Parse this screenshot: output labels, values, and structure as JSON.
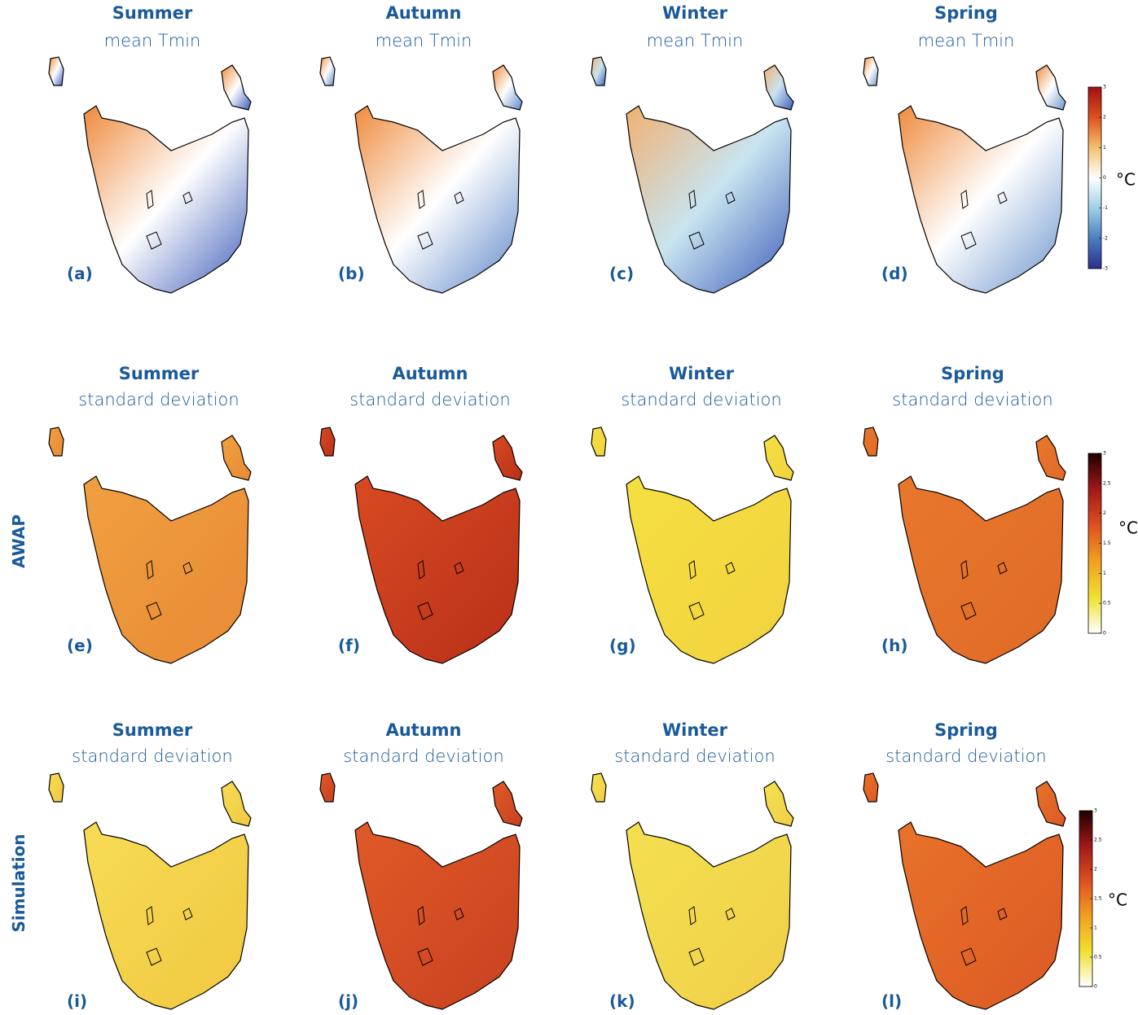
{
  "rows": [
    {
      "panels": [
        {
          "season": "Summer",
          "stat": "mean Tmin",
          "letter": "(a)"
        },
        {
          "season": "Autumn",
          "stat": "mean Tmin",
          "letter": "(b)"
        },
        {
          "season": "Winter",
          "stat": "mean Tmin",
          "letter": "(c)"
        },
        {
          "season": "Spring",
          "stat": "mean Tmin",
          "letter": "(d)"
        }
      ],
      "colorbar": {
        "lim": [
          -3,
          3
        ],
        "ticks": [
          -3,
          -2,
          -1,
          0,
          1,
          2,
          3
        ],
        "unit": "°C",
        "colors": [
          "#2b2e8c",
          "#4a7fc0",
          "#9fd0e8",
          "#ffffff",
          "#f5c070",
          "#e05020",
          "#a01010"
        ]
      }
    },
    {
      "label": "AWAP",
      "panels": [
        {
          "season": "Summer",
          "stat": "standard deviation",
          "letter": "(e)"
        },
        {
          "season": "Autumn",
          "stat": "standard deviation",
          "letter": "(f)"
        },
        {
          "season": "Winter",
          "stat": "standard deviation",
          "letter": "(g)"
        },
        {
          "season": "Spring",
          "stat": "standard deviation",
          "letter": "(h)"
        }
      ],
      "colorbar": {
        "lim": [
          0,
          3
        ],
        "ticks": [
          0,
          0.5,
          1,
          1.5,
          2,
          2.5,
          3
        ],
        "unit": "°C",
        "colors": [
          "#ffffff",
          "#f0e030",
          "#f0a020",
          "#e05020",
          "#a01818",
          "#200000"
        ]
      }
    },
    {
      "label": "Simulation",
      "panels": [
        {
          "season": "Summer",
          "stat": "standard deviation",
          "letter": "(i)"
        },
        {
          "season": "Autumn",
          "stat": "standard deviation",
          "letter": "(j)"
        },
        {
          "season": "Winter",
          "stat": "standard deviation",
          "letter": "(k)"
        },
        {
          "season": "Spring",
          "stat": "standard deviation",
          "letter": "(l)"
        }
      ],
      "colorbar": {
        "lim": [
          0,
          3
        ],
        "ticks": [
          0,
          0.5,
          1,
          1.5,
          2,
          2.5,
          3
        ],
        "unit": "°C",
        "colors": [
          "#ffffff",
          "#f0e030",
          "#f0a020",
          "#e05020",
          "#a01818",
          "#200000"
        ]
      }
    }
  ]
}
